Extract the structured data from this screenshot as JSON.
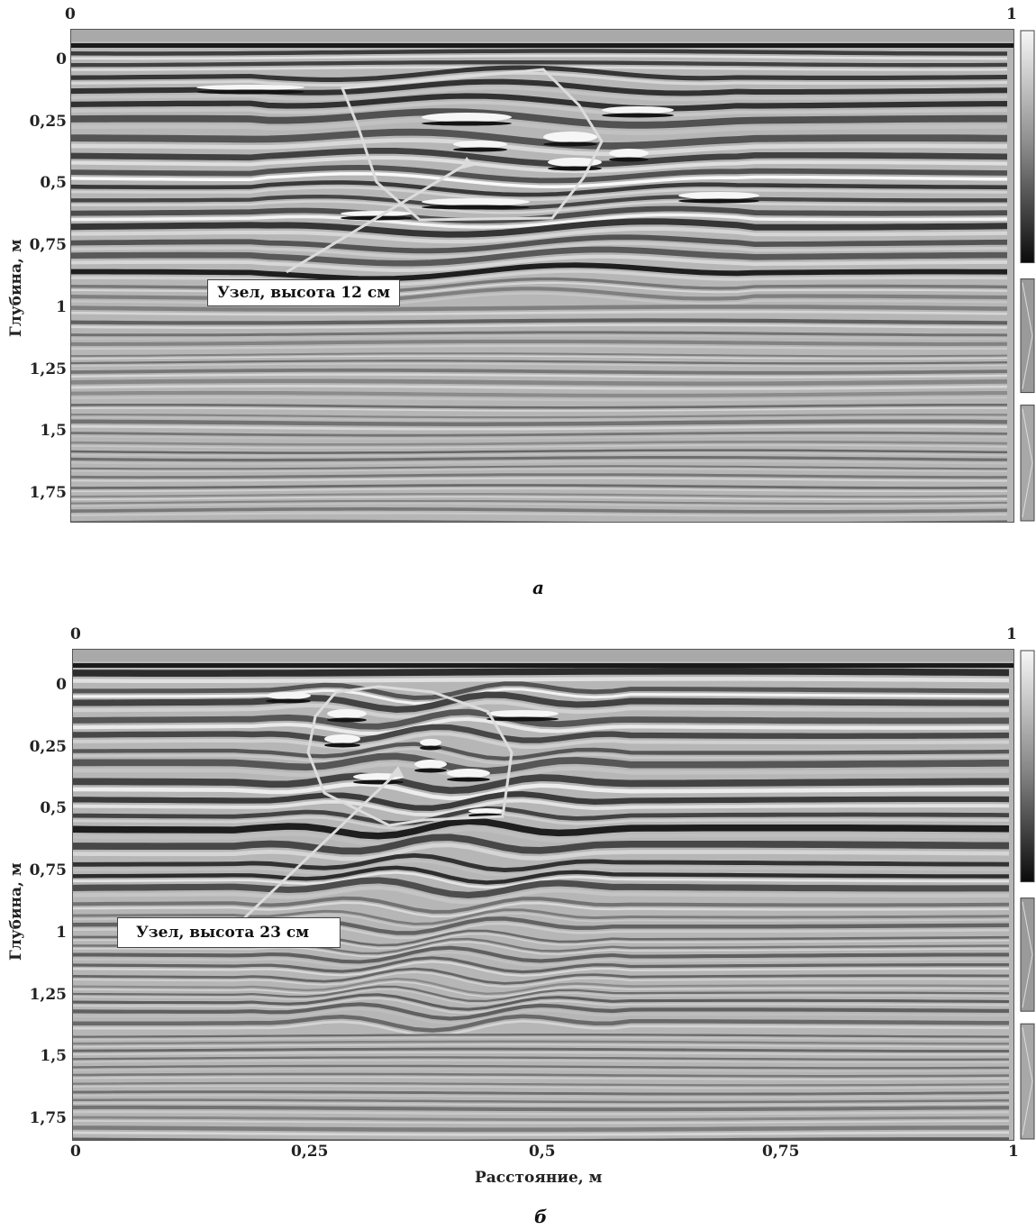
{
  "panel_a": {
    "top_left_label": "0",
    "top_right_label": "1",
    "y_axis_label": "Глубина, м",
    "y_ticks": [
      "0",
      "0,25",
      "0,5",
      "0,75",
      "1",
      "1,25",
      "1,5",
      "1,75"
    ],
    "callout": "Узел, высота 12 см",
    "caption": "а"
  },
  "panel_b": {
    "top_left_label": "0",
    "top_right_label": "1",
    "y_axis_label": "Глубина, м",
    "y_ticks": [
      "0",
      "0,25",
      "0,5",
      "0,75",
      "1",
      "1,25",
      "1,5",
      "1,75"
    ],
    "x_ticks": [
      "0",
      "0,25",
      "0,5",
      "0,75",
      "1"
    ],
    "x_axis_label": "Расстояние, м",
    "callout": "Узел, высота 23 см",
    "caption": "б"
  },
  "colors": {
    "background_gray": "#b4b4b4",
    "dark_band": "#1e1e1e",
    "light_band": "#f4f4f4",
    "outline": "#dcdcdc"
  }
}
